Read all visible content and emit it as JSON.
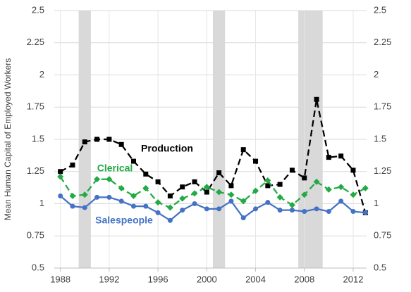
{
  "chart_data": {
    "type": "line",
    "ylabel": "Mean Human Capital of Employed Workers",
    "x": [
      1988,
      1989,
      1990,
      1991,
      1992,
      1993,
      1994,
      1995,
      1996,
      1997,
      1998,
      1999,
      2000,
      2001,
      2002,
      2003,
      2004,
      2005,
      2006,
      2007,
      2008,
      2009,
      2010,
      2011,
      2012,
      2013
    ],
    "series": [
      {
        "name": "Production",
        "color": "#000000",
        "marker": "square",
        "dashed": true,
        "values": [
          1.25,
          1.3,
          1.48,
          1.5,
          1.5,
          1.46,
          1.33,
          1.23,
          1.17,
          1.06,
          1.13,
          1.17,
          1.09,
          1.24,
          1.14,
          1.42,
          1.33,
          1.14,
          1.15,
          1.26,
          1.2,
          1.81,
          1.36,
          1.37,
          1.26,
          0.93
        ]
      },
      {
        "name": "Clerical",
        "color": "#22aa44",
        "marker": "diamond",
        "dashed": true,
        "values": [
          1.21,
          1.06,
          1.07,
          1.19,
          1.19,
          1.12,
          1.06,
          1.12,
          1.01,
          0.97,
          1.04,
          1.08,
          1.13,
          1.09,
          1.07,
          1.02,
          1.1,
          1.18,
          1.05,
          0.99,
          1.07,
          1.17,
          1.11,
          1.13,
          1.07,
          1.12
        ]
      },
      {
        "name": "Salespeople",
        "color": "#4472c4",
        "marker": "circle",
        "dashed": false,
        "values": [
          1.06,
          0.98,
          0.97,
          1.05,
          1.05,
          1.02,
          0.98,
          0.98,
          0.93,
          0.87,
          0.95,
          1.0,
          0.96,
          0.96,
          1.02,
          0.89,
          0.96,
          1.01,
          0.95,
          0.95,
          0.94,
          0.96,
          0.94,
          1.02,
          0.94,
          0.93
        ]
      }
    ],
    "recessions": [
      [
        1989.5,
        1990.5
      ],
      [
        2000.5,
        2001.5
      ],
      [
        2007.5,
        2009.5
      ]
    ],
    "xlim": [
      1987.5,
      2013.1
    ],
    "xticks": [
      1988,
      1992,
      1996,
      2000,
      2004,
      2008,
      2012
    ],
    "ylim": [
      0.5,
      2.5
    ],
    "yticks": [
      0.5,
      0.75,
      1,
      1.25,
      1.5,
      1.75,
      2,
      2.25,
      2.5
    ],
    "y2lim": [
      0.5,
      2.5
    ],
    "y2ticks": [
      0.5,
      0.75,
      1,
      1.25,
      1.5,
      1.75,
      2,
      2.25,
      2.5
    ],
    "grid": true
  }
}
